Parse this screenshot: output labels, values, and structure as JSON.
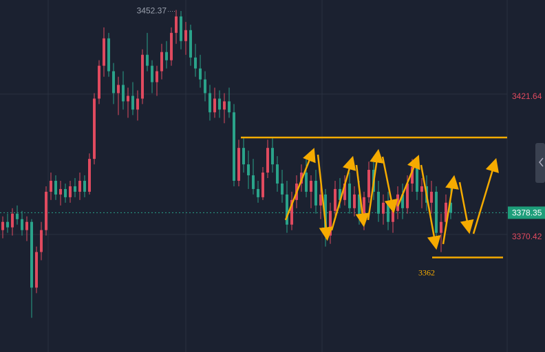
{
  "chart_data": {
    "type": "candlestick",
    "candles": [
      [
        3372,
        3377,
        3369,
        3375
      ],
      [
        3375,
        3378,
        3371,
        3373
      ],
      [
        3373,
        3380,
        3370,
        3378
      ],
      [
        3378,
        3381,
        3374,
        3376
      ],
      [
        3376,
        3379,
        3370,
        3372
      ],
      [
        3372,
        3377,
        3368,
        3375
      ],
      [
        3375,
        3376,
        3340,
        3351
      ],
      [
        3351,
        3366,
        3349,
        3364
      ],
      [
        3364,
        3375,
        3361,
        3372
      ],
      [
        3372,
        3388,
        3370,
        3386
      ],
      [
        3386,
        3393,
        3383,
        3390
      ],
      [
        3390,
        3392,
        3383,
        3385
      ],
      [
        3385,
        3390,
        3381,
        3387
      ],
      [
        3387,
        3389,
        3382,
        3384
      ],
      [
        3384,
        3390,
        3382,
        3388
      ],
      [
        3388,
        3391,
        3384,
        3386
      ],
      [
        3386,
        3393,
        3383,
        3390
      ],
      [
        3390,
        3392,
        3384,
        3386
      ],
      [
        3386,
        3400,
        3385,
        3398
      ],
      [
        3398,
        3422,
        3396,
        3420
      ],
      [
        3420,
        3434,
        3418,
        3432
      ],
      [
        3432,
        3446,
        3428,
        3442
      ],
      [
        3442,
        3444,
        3428,
        3430
      ],
      [
        3430,
        3433,
        3418,
        3422
      ],
      [
        3422,
        3428,
        3414,
        3425
      ],
      [
        3425,
        3430,
        3416,
        3419
      ],
      [
        3419,
        3424,
        3413,
        3421
      ],
      [
        3421,
        3426,
        3414,
        3416
      ],
      [
        3416,
        3423,
        3412,
        3420
      ],
      [
        3420,
        3438,
        3418,
        3436
      ],
      [
        3436,
        3444,
        3430,
        3432
      ],
      [
        3432,
        3434,
        3422,
        3426
      ],
      [
        3426,
        3432,
        3421,
        3430
      ],
      [
        3430,
        3440,
        3427,
        3437
      ],
      [
        3437,
        3441,
        3431,
        3434
      ],
      [
        3434,
        3446,
        3432,
        3444
      ],
      [
        3444,
        3452.37,
        3440,
        3450
      ],
      [
        3450,
        3452,
        3438,
        3441
      ],
      [
        3441,
        3448,
        3436,
        3445
      ],
      [
        3445,
        3447,
        3432,
        3435
      ],
      [
        3435,
        3440,
        3428,
        3431
      ],
      [
        3431,
        3436,
        3424,
        3427
      ],
      [
        3427,
        3430,
        3419,
        3422
      ],
      [
        3422,
        3425,
        3412,
        3415
      ],
      [
        3415,
        3424,
        3413,
        3420
      ],
      [
        3420,
        3423,
        3413,
        3416
      ],
      [
        3416,
        3422,
        3411,
        3419
      ],
      [
        3419,
        3424,
        3413,
        3415
      ],
      [
        3415,
        3418,
        3388,
        3390
      ],
      [
        3390,
        3405,
        3388,
        3402
      ],
      [
        3402,
        3406,
        3393,
        3396
      ],
      [
        3396,
        3401,
        3387,
        3392
      ],
      [
        3392,
        3398,
        3385,
        3387
      ],
      [
        3387,
        3390,
        3382,
        3384
      ],
      [
        3384,
        3395,
        3383,
        3393
      ],
      [
        3393,
        3405,
        3391,
        3402
      ],
      [
        3402,
        3406,
        3393,
        3396
      ],
      [
        3396,
        3399,
        3386,
        3389
      ],
      [
        3389,
        3394,
        3382,
        3385
      ],
      [
        3385,
        3390,
        3371,
        3374
      ],
      [
        3374,
        3386,
        3372,
        3383
      ],
      [
        3383,
        3392,
        3380,
        3389
      ],
      [
        3389,
        3396,
        3386,
        3393
      ],
      [
        3393,
        3398,
        3384,
        3386
      ],
      [
        3386,
        3392,
        3380,
        3390
      ],
      [
        3390,
        3394,
        3378,
        3381
      ],
      [
        3381,
        3389,
        3376,
        3385
      ],
      [
        3385,
        3387,
        3366,
        3370
      ],
      [
        3370,
        3382,
        3367,
        3379
      ],
      [
        3379,
        3390,
        3376,
        3387
      ],
      [
        3387,
        3391,
        3380,
        3383
      ],
      [
        3383,
        3392,
        3381,
        3389
      ],
      [
        3389,
        3393,
        3378,
        3380
      ],
      [
        3380,
        3388,
        3377,
        3385
      ],
      [
        3385,
        3390,
        3374,
        3377
      ],
      [
        3377,
        3386,
        3372,
        3384
      ],
      [
        3384,
        3397,
        3382,
        3394
      ],
      [
        3394,
        3398,
        3383,
        3386
      ],
      [
        3386,
        3390,
        3375,
        3378
      ],
      [
        3378,
        3385,
        3374,
        3382
      ],
      [
        3382,
        3386,
        3372,
        3375
      ],
      [
        3375,
        3381,
        3371,
        3379
      ],
      [
        3379,
        3388,
        3376,
        3385
      ],
      [
        3385,
        3389,
        3376,
        3380
      ],
      [
        3380,
        3392,
        3378,
        3389
      ],
      [
        3389,
        3398,
        3386,
        3395
      ],
      [
        3395,
        3397,
        3383,
        3386
      ],
      [
        3386,
        3391,
        3380,
        3388
      ],
      [
        3388,
        3392,
        3379,
        3382
      ],
      [
        3382,
        3390,
        3378,
        3386
      ],
      [
        3386,
        3388,
        3368,
        3371
      ],
      [
        3371,
        3378,
        3364,
        3375
      ],
      [
        3375,
        3385,
        3372,
        3382
      ],
      [
        3382,
        3388,
        3376,
        3378.35
      ]
    ],
    "up_color": "#e04a5f",
    "down_color": "#2aa38a",
    "ylim": [
      3327.5,
      3456
    ],
    "yticks": [
      3421.64,
      3370.42
    ],
    "grid": true,
    "high_index": 36,
    "last_price": 3378.35,
    "resistance": 3405.8,
    "support": 3362,
    "annotation_color": "#f5ab00"
  }
}
